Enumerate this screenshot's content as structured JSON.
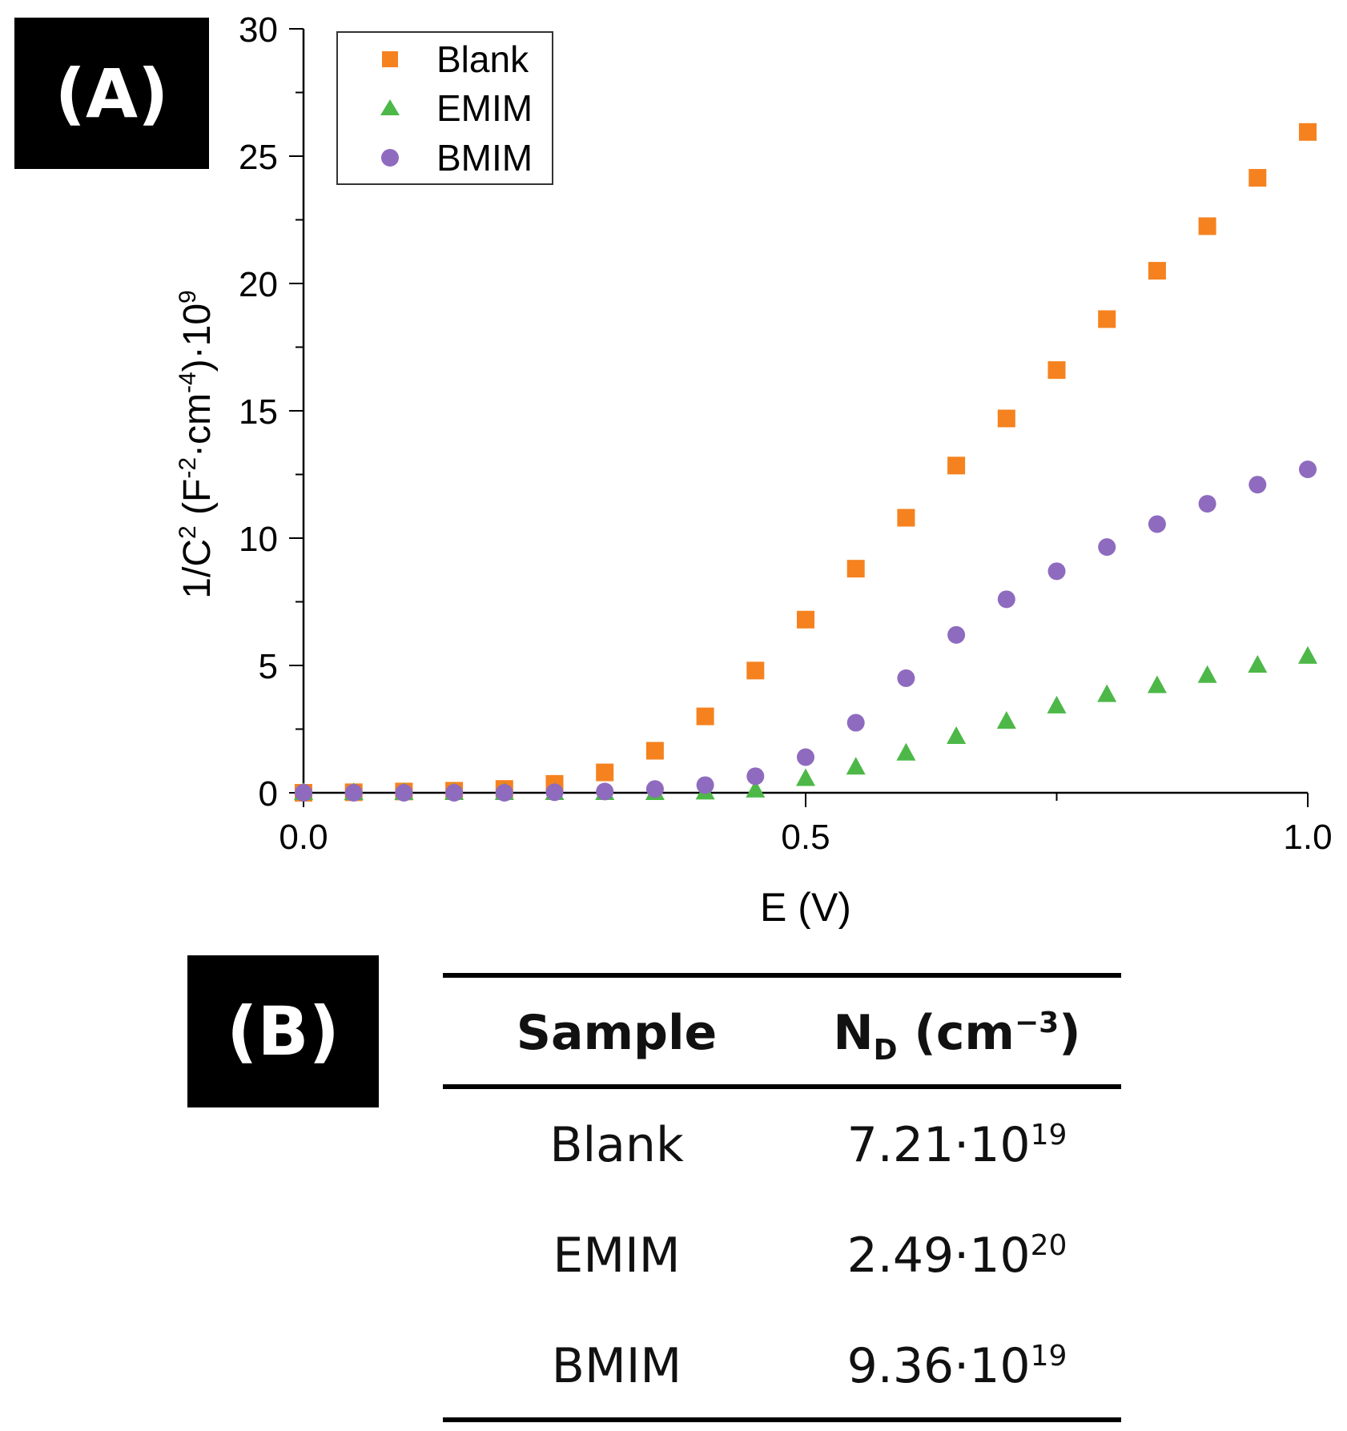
{
  "panel_a_label": "(A)",
  "panel_b_label": "(B)",
  "chart_data": {
    "type": "scatter",
    "title": "",
    "xlabel": "E (V)",
    "ylabel": {
      "main": "1/C",
      "sup1": "2",
      "mid": " (F",
      "sup2": "-2",
      "mid2": "·cm",
      "sup3": "-4",
      "end": ")·10",
      "sup4": "9"
    },
    "xlim": [
      0.0,
      1.0
    ],
    "ylim": [
      0,
      30
    ],
    "xticks": [
      0.0,
      0.5,
      1.0
    ],
    "xtick_labels": [
      "0.0",
      "0.5",
      "1.0"
    ],
    "yticks": [
      0,
      5,
      10,
      15,
      20,
      25,
      30
    ],
    "ytick_labels": [
      "0",
      "5",
      "10",
      "15",
      "20",
      "25",
      "30"
    ],
    "legend_position": "top-left",
    "grid": false,
    "series": [
      {
        "name": "Blank",
        "marker": "square",
        "color": "#f5821f",
        "x": [
          0.0,
          0.05,
          0.1,
          0.15,
          0.2,
          0.25,
          0.3,
          0.35,
          0.4,
          0.45,
          0.5,
          0.55,
          0.6,
          0.65,
          0.7,
          0.75,
          0.8,
          0.85,
          0.9,
          0.95,
          1.0
        ],
        "y": [
          0.0,
          0.02,
          0.05,
          0.08,
          0.15,
          0.35,
          0.8,
          1.65,
          3.0,
          4.8,
          6.8,
          8.8,
          10.8,
          12.85,
          14.7,
          16.6,
          18.6,
          20.5,
          22.25,
          24.15,
          25.95
        ]
      },
      {
        "name": "EMIM",
        "marker": "triangle",
        "color": "#4db848",
        "x": [
          0.0,
          0.05,
          0.1,
          0.15,
          0.2,
          0.25,
          0.3,
          0.35,
          0.4,
          0.45,
          0.5,
          0.55,
          0.6,
          0.65,
          0.7,
          0.75,
          0.8,
          0.85,
          0.9,
          0.95,
          1.0
        ],
        "y": [
          0.0,
          0.0,
          0.0,
          0.0,
          0.0,
          0.0,
          0.0,
          0.0,
          0.02,
          0.1,
          0.55,
          1.0,
          1.55,
          2.2,
          2.8,
          3.4,
          3.85,
          4.2,
          4.6,
          5.0,
          5.35
        ]
      },
      {
        "name": "BMIM",
        "marker": "circle",
        "color": "#8e6bbf",
        "x": [
          0.0,
          0.05,
          0.1,
          0.15,
          0.2,
          0.25,
          0.3,
          0.35,
          0.4,
          0.45,
          0.5,
          0.55,
          0.6,
          0.65,
          0.7,
          0.75,
          0.8,
          0.85,
          0.9,
          0.95,
          1.0
        ],
        "y": [
          0.0,
          0.0,
          0.0,
          0.0,
          0.0,
          0.02,
          0.05,
          0.15,
          0.3,
          0.65,
          1.4,
          2.75,
          4.5,
          6.2,
          7.6,
          8.7,
          9.65,
          10.55,
          11.35,
          12.1,
          12.7
        ]
      }
    ]
  },
  "table": {
    "headers": {
      "sample": "Sample",
      "nd_main": "N",
      "nd_sub": "D",
      "nd_unit": " (cm",
      "nd_sup": "−3",
      "nd_close": ")"
    },
    "rows": [
      {
        "sample": "Blank",
        "value_base": "7.21·10",
        "value_exp": "19"
      },
      {
        "sample": "EMIM",
        "value_base": "2.49·10",
        "value_exp": "20"
      },
      {
        "sample": "BMIM",
        "value_base": "9.36·10",
        "value_exp": "19"
      }
    ]
  }
}
